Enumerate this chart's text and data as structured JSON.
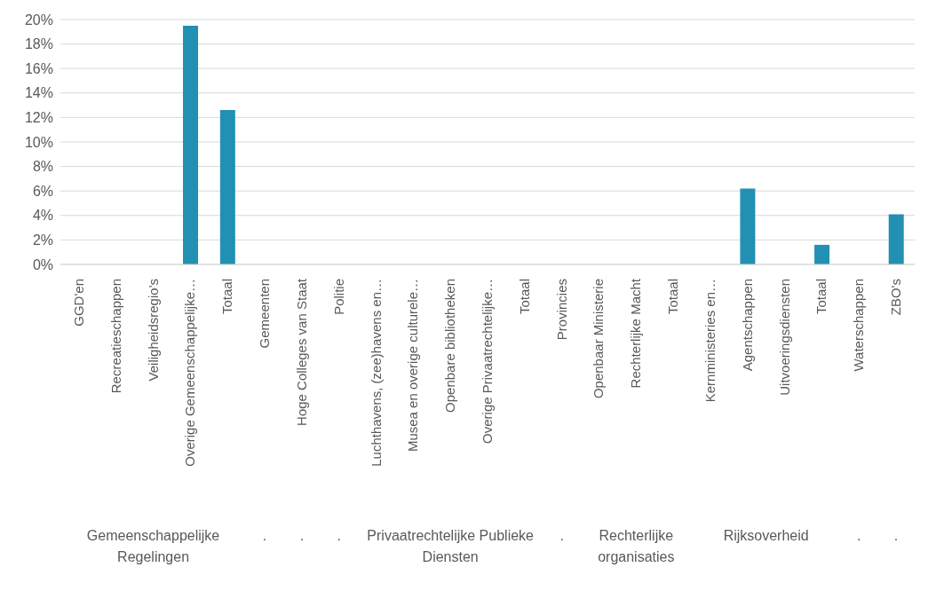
{
  "chart_data": {
    "type": "bar",
    "categories": [
      "GGD'en",
      "Recreatieschappen",
      "Veiligheidsregio's",
      "Overige Gemeenschappelijke…",
      "Totaal",
      "Gemeenten",
      "Hoge Colleges van Staat",
      "Politie",
      "Luchthavens, (zee)havens en…",
      "Musea en overige culturele…",
      "Openbare bibliotheken",
      "Overige Privaatrechtelijke…",
      "Totaal",
      "Provincies",
      "Openbaar Ministerie",
      "Rechterlijke Macht",
      "Totaal",
      "Kernministeries en…",
      "Agentschappen",
      "Uitvoeringsdiensten",
      "Totaal",
      "Waterschappen",
      "ZBO's"
    ],
    "values": [
      0,
      0,
      0,
      19.5,
      12.6,
      0,
      0,
      0,
      0,
      0,
      0,
      0,
      0,
      0,
      0,
      0,
      0,
      0,
      6.2,
      0,
      1.6,
      0,
      4.1
    ],
    "color": "#2290b3",
    "ylim": [
      0,
      20
    ],
    "yticks": [
      {
        "value": 0,
        "label": "0%"
      },
      {
        "value": 2,
        "label": "2%"
      },
      {
        "value": 4,
        "label": "4%"
      },
      {
        "value": 6,
        "label": "6%"
      },
      {
        "value": 8,
        "label": "8%"
      },
      {
        "value": 10,
        "label": "10%"
      },
      {
        "value": 12,
        "label": "12%"
      },
      {
        "value": 14,
        "label": "14%"
      },
      {
        "value": 16,
        "label": "16%"
      },
      {
        "value": 18,
        "label": "18%"
      },
      {
        "value": 20,
        "label": "20%"
      }
    ],
    "grid": "y",
    "annotations": [
      "Gemeenschappelijke Regelingen",
      ".",
      ".",
      ".",
      "Privaatrechtelijke Publieke Diensten",
      ".",
      "Rechterlijke organisaties",
      "Rijksoverheid",
      ".",
      "."
    ]
  }
}
